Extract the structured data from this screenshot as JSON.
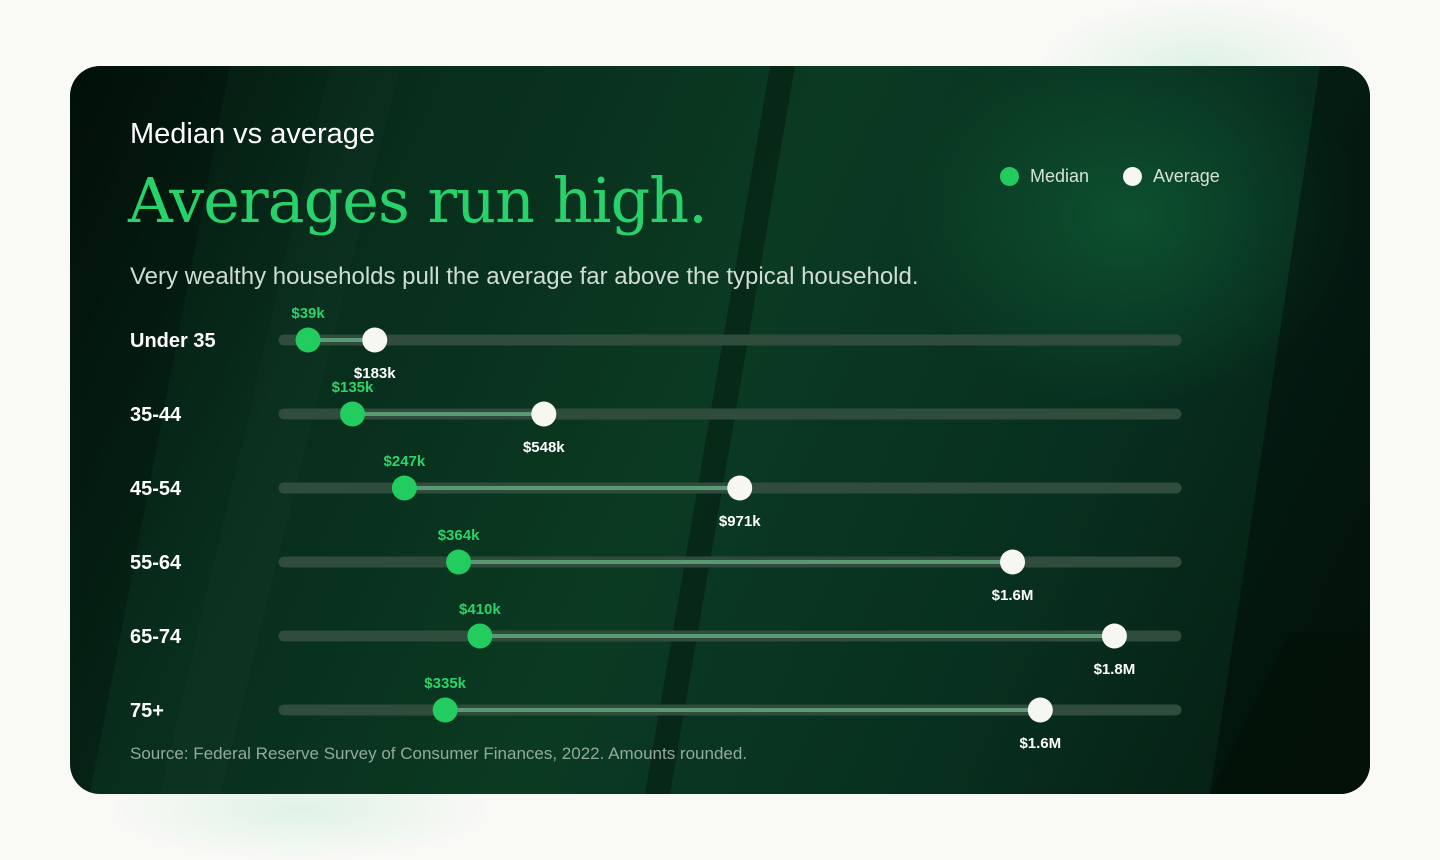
{
  "card": {
    "title": "Median vs average",
    "headline": "Averages run high.",
    "subtitle": "Very wealthy households pull the average far above the typical household.",
    "source": "Source: Federal Reserve Survey of Consumer Finances, 2022. Amounts rounded."
  },
  "legend": {
    "median_label": "Median",
    "average_label": "Average"
  },
  "colors": {
    "median": "#22cc5f",
    "median_label": "#2bd46b",
    "average": "#f7f7f2",
    "track": "#2f4c3c",
    "range": "#5b9a74",
    "category_label": "#ffffff"
  },
  "chart_data": {
    "type": "dumbbell",
    "title": "Averages run high.",
    "xlim": [
      0,
      1900000
    ],
    "legend_position": "top-right",
    "grid": false,
    "categories": [
      "Under 35",
      "35-44",
      "45-54",
      "55-64",
      "65-74",
      "75+"
    ],
    "series": [
      {
        "name": "Median",
        "values": [
          39000,
          135000,
          247000,
          364000,
          410000,
          335000
        ],
        "labels": [
          "$39k",
          "$135k",
          "$247k",
          "$364k",
          "$410k",
          "$335k"
        ]
      },
      {
        "name": "Average",
        "values": [
          183000,
          548000,
          971000,
          1560000,
          1780000,
          1620000
        ],
        "labels": [
          "$183k",
          "$548k",
          "$971k",
          "$1.6M",
          "$1.8M",
          "$1.6M"
        ]
      }
    ]
  }
}
